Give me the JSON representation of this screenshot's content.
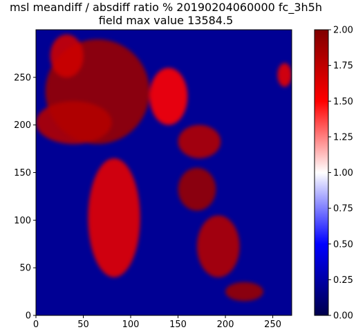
{
  "chart_data": {
    "type": "heatmap",
    "title_line1": "msl meandiff / absdiff ratio % 20190204060000 fc_3h5h",
    "title_line2": "field max value 13584.5",
    "xlabel": "",
    "ylabel": "",
    "xlim": [
      0,
      270
    ],
    "ylim": [
      0,
      300
    ],
    "x_ticks": [
      0,
      50,
      100,
      150,
      200,
      250
    ],
    "y_ticks": [
      0,
      50,
      100,
      150,
      200,
      250
    ],
    "colorbar": {
      "colormap": "seismic",
      "vmin": 0.0,
      "vmax": 2.0,
      "ticks": [
        "0.00",
        "0.25",
        "0.50",
        "0.75",
        "1.00",
        "1.25",
        "1.50",
        "1.75",
        "2.00"
      ],
      "colors": [
        "#00004c",
        "#0000ff",
        "#ffffff",
        "#ff0000",
        "#7f0000"
      ]
    },
    "background_value": 0.2,
    "features": [
      {
        "region": "upper-left large high-ratio area",
        "x": [
          10,
          120
        ],
        "y": [
          180,
          290
        ],
        "value": 1.9
      },
      {
        "region": "upper-left strip",
        "x": [
          15,
          50
        ],
        "y": [
          250,
          295
        ],
        "value": 1.7
      },
      {
        "region": "left-center band",
        "x": [
          0,
          80
        ],
        "y": [
          180,
          225
        ],
        "value": 1.8
      },
      {
        "region": "upper-center patches",
        "x": [
          120,
          160
        ],
        "y": [
          200,
          260
        ],
        "value": 1.5
      },
      {
        "region": "central lower structure",
        "x": [
          55,
          110
        ],
        "y": [
          40,
          165
        ],
        "value": 1.6
      },
      {
        "region": "diagonal front upper",
        "x": [
          150,
          195
        ],
        "y": [
          165,
          200
        ],
        "value": 1.8
      },
      {
        "region": "diagonal front middle",
        "x": [
          150,
          190
        ],
        "y": [
          110,
          155
        ],
        "value": 1.9
      },
      {
        "region": "diagonal front lower",
        "x": [
          170,
          215
        ],
        "y": [
          40,
          105
        ],
        "value": 1.8
      },
      {
        "region": "bottom-right patch",
        "x": [
          200,
          240
        ],
        "y": [
          15,
          35
        ],
        "value": 1.9
      },
      {
        "region": "right edge patch",
        "x": [
          255,
          270
        ],
        "y": [
          240,
          265
        ],
        "value": 1.6
      }
    ]
  }
}
